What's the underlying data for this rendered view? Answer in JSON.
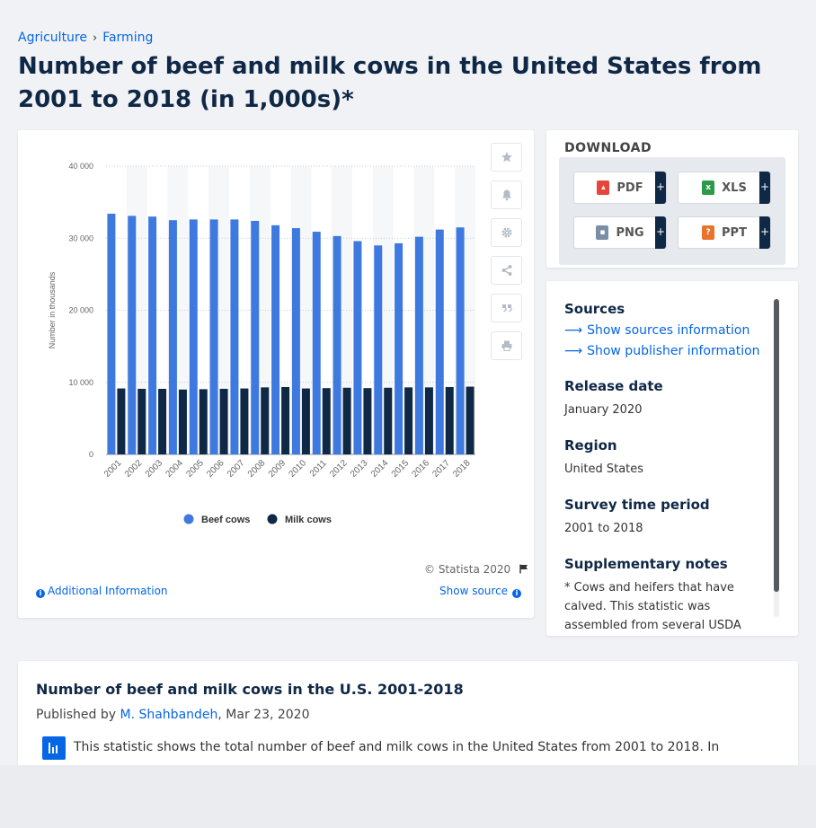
{
  "breadcrumb": {
    "items": [
      "Agriculture",
      "Farming"
    ],
    "separator": "›"
  },
  "page_title": "Number of beef and milk cows in the United States from 2001 to 2018 (in 1,000s)*",
  "chart_tools": [
    "star-icon",
    "bell-icon",
    "gear-icon",
    "share-icon",
    "quote-icon",
    "print-icon"
  ],
  "chart_footer": {
    "copyright": "© Statista 2020",
    "additional_info": "Additional Information",
    "show_source": "Show source"
  },
  "download": {
    "title": "DOWNLOAD",
    "buttons": [
      {
        "label": "PDF",
        "color": "#e5453b"
      },
      {
        "label": "XLS",
        "color": "#2c9a48"
      },
      {
        "label": "PNG",
        "color": "#7a8ea6"
      },
      {
        "label": "PPT",
        "color": "#e8742b"
      }
    ],
    "plus": "+"
  },
  "info": {
    "sources_heading": "Sources",
    "sources_link": "Show sources information",
    "publisher_link": "Show publisher information",
    "release_heading": "Release date",
    "release_value": "January 2020",
    "region_heading": "Region",
    "region_value": "United States",
    "period_heading": "Survey time period",
    "period_value": "2001 to 2018",
    "notes_heading": "Supplementary notes",
    "notes_value": "* Cows and heifers that have calved. This statistic was assembled from several USDA annual statistics reports."
  },
  "description": {
    "title": "Number of beef and milk cows in the U.S. 2001-2018",
    "published_prefix": "Published by ",
    "author": "M. Shahbandeh",
    "date": ", Mar 23, 2020",
    "text": "This statistic shows the total number of beef and milk cows in the United States from 2001 to 2018. In"
  },
  "colors": {
    "beef": "#3e79e0",
    "milk": "#0f2846",
    "accent": "#0666e5"
  },
  "chart_data": {
    "type": "bar",
    "categories": [
      "2001",
      "2002",
      "2003",
      "2004",
      "2005",
      "2006",
      "2007",
      "2008",
      "2009",
      "2010",
      "2011",
      "2012",
      "2013",
      "2014",
      "2015",
      "2016",
      "2017",
      "2018"
    ],
    "series": [
      {
        "name": "Beef cows",
        "values": [
          33400,
          33100,
          33000,
          32500,
          32600,
          32600,
          32600,
          32400,
          31800,
          31400,
          30900,
          30300,
          29600,
          29000,
          29300,
          30200,
          31200,
          31500
        ]
      },
      {
        "name": "Milk cows",
        "values": [
          9150,
          9100,
          9100,
          9000,
          9050,
          9100,
          9150,
          9300,
          9350,
          9150,
          9200,
          9250,
          9200,
          9250,
          9300,
          9300,
          9350,
          9400
        ]
      }
    ],
    "ylabel": "Number in thousands",
    "yticks": [
      "0",
      "10 000",
      "20 000",
      "30 000",
      "40 000"
    ],
    "ylim": [
      0,
      40000
    ],
    "grid": true,
    "legend": "bottom-center"
  }
}
